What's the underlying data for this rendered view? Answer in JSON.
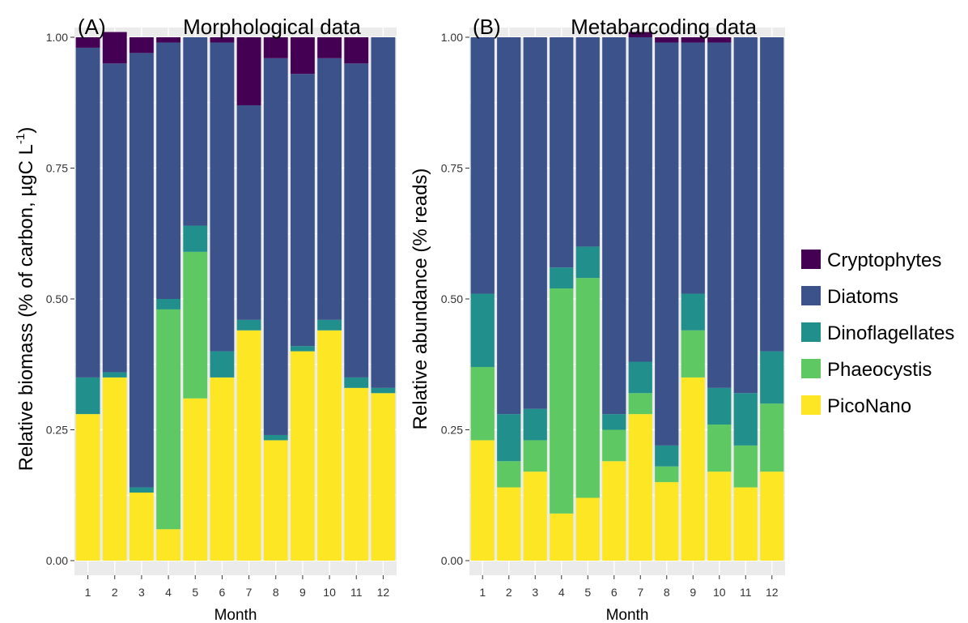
{
  "chart_data": [
    {
      "type": "bar",
      "stacked": true,
      "panel_label": "(A)",
      "title": "Morphological data",
      "xlabel": "Month",
      "ylabel": "Relative biomass (% of carbon, µgC L",
      "ylabel_superscript": "-1",
      "ylabel_close": ")",
      "ylim": [
        0,
        1
      ],
      "yticks": [
        "0.00",
        "0.25",
        "0.50",
        "0.75",
        "1.00"
      ],
      "grid": true,
      "categories": [
        "1",
        "2",
        "3",
        "4",
        "5",
        "6",
        "7",
        "8",
        "9",
        "10",
        "11",
        "12"
      ],
      "series": [
        {
          "name": "PicoNano",
          "values": [
            0.28,
            0.35,
            0.13,
            0.06,
            0.31,
            0.35,
            0.44,
            0.23,
            0.4,
            0.44,
            0.33,
            0.32
          ]
        },
        {
          "name": "Phaeocystis",
          "values": [
            0.0,
            0.0,
            0.0,
            0.42,
            0.28,
            0.0,
            0.0,
            0.0,
            0.0,
            0.0,
            0.0,
            0.0
          ]
        },
        {
          "name": "Dinoflagellates",
          "values": [
            0.07,
            0.01,
            0.01,
            0.02,
            0.05,
            0.05,
            0.02,
            0.01,
            0.01,
            0.02,
            0.02,
            0.01
          ]
        },
        {
          "name": "Diatoms",
          "values": [
            0.63,
            0.59,
            0.83,
            0.49,
            0.36,
            0.59,
            0.41,
            0.72,
            0.52,
            0.5,
            0.6,
            0.67
          ]
        },
        {
          "name": "Cryptophytes",
          "values": [
            0.02,
            0.06,
            0.03,
            0.01,
            0.0,
            0.01,
            0.13,
            0.04,
            0.07,
            0.04,
            0.05,
            0.0
          ]
        }
      ]
    },
    {
      "type": "bar",
      "stacked": true,
      "panel_label": "(B)",
      "title": "Metabarcoding data",
      "xlabel": "Month",
      "ylabel": "Relative abundance (% reads)",
      "ylim": [
        0,
        1
      ],
      "yticks": [
        "0.00",
        "0.25",
        "0.50",
        "0.75",
        "1.00"
      ],
      "grid": true,
      "categories": [
        "1",
        "2",
        "3",
        "4",
        "5",
        "6",
        "7",
        "8",
        "9",
        "10",
        "11",
        "12"
      ],
      "series": [
        {
          "name": "PicoNano",
          "values": [
            0.23,
            0.14,
            0.17,
            0.09,
            0.12,
            0.19,
            0.28,
            0.15,
            0.35,
            0.17,
            0.14,
            0.17
          ]
        },
        {
          "name": "Phaeocystis",
          "values": [
            0.14,
            0.05,
            0.06,
            0.43,
            0.42,
            0.06,
            0.04,
            0.03,
            0.09,
            0.09,
            0.08,
            0.13
          ]
        },
        {
          "name": "Dinoflagellates",
          "values": [
            0.14,
            0.09,
            0.06,
            0.04,
            0.06,
            0.03,
            0.06,
            0.04,
            0.07,
            0.07,
            0.1,
            0.1
          ]
        },
        {
          "name": "Diatoms",
          "values": [
            0.49,
            0.72,
            0.71,
            0.44,
            0.4,
            0.72,
            0.62,
            0.77,
            0.48,
            0.66,
            0.68,
            0.6
          ]
        },
        {
          "name": "Cryptophytes",
          "values": [
            0.0,
            0.0,
            0.0,
            0.0,
            0.0,
            0.0,
            0.01,
            0.01,
            0.01,
            0.01,
            0.0,
            0.0
          ]
        }
      ]
    }
  ],
  "legend": {
    "position": "right",
    "items": [
      {
        "name": "Cryptophytes",
        "color": "#440154"
      },
      {
        "name": "Diatoms",
        "color": "#3b528b"
      },
      {
        "name": "Dinoflagellates",
        "color": "#21908c"
      },
      {
        "name": "Phaeocystis",
        "color": "#5ec962"
      },
      {
        "name": "PicoNano",
        "color": "#fde725"
      }
    ]
  },
  "colors": {
    "panel_background": "#ebebeb",
    "gridline": "#ffffff"
  }
}
